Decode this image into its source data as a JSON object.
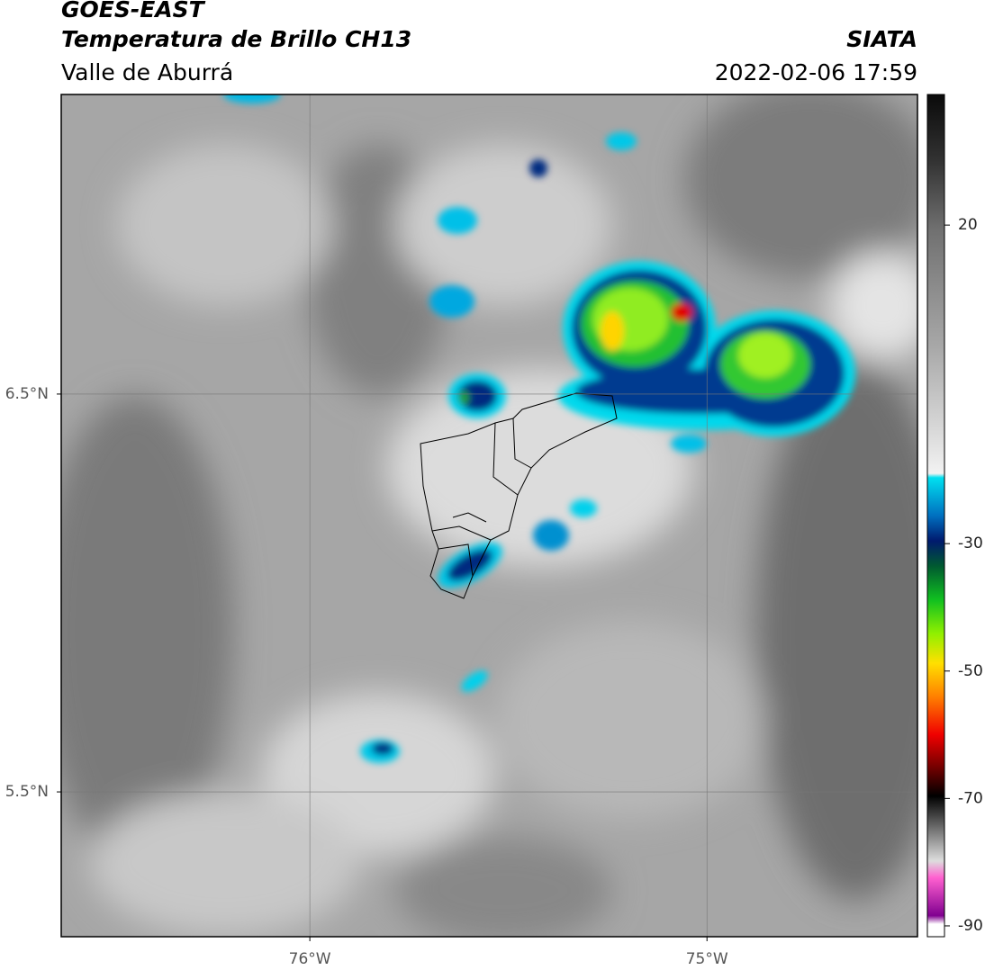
{
  "header": {
    "title": "GOES-EAST",
    "subtitle": "Temperatura de Brillo CH13",
    "region": "Valle de Aburrá",
    "source": "SIATA",
    "datetime": "2022-02-06 17:59"
  },
  "map": {
    "xlim": [
      -76.626,
      -74.47
    ],
    "ylim": [
      5.136,
      7.253
    ],
    "xticks": [
      {
        "value": -76,
        "label": "76°W"
      },
      {
        "value": -75,
        "label": "75°W"
      }
    ],
    "yticks": [
      {
        "value": 6.5,
        "label": "6.5°N"
      },
      {
        "value": 5.5,
        "label": "5.5°N"
      }
    ],
    "grid": true
  },
  "colorbar": {
    "lim": [
      -91.7,
      40.5
    ],
    "ticks": [
      20,
      -30,
      -50,
      -70,
      -90
    ]
  }
}
